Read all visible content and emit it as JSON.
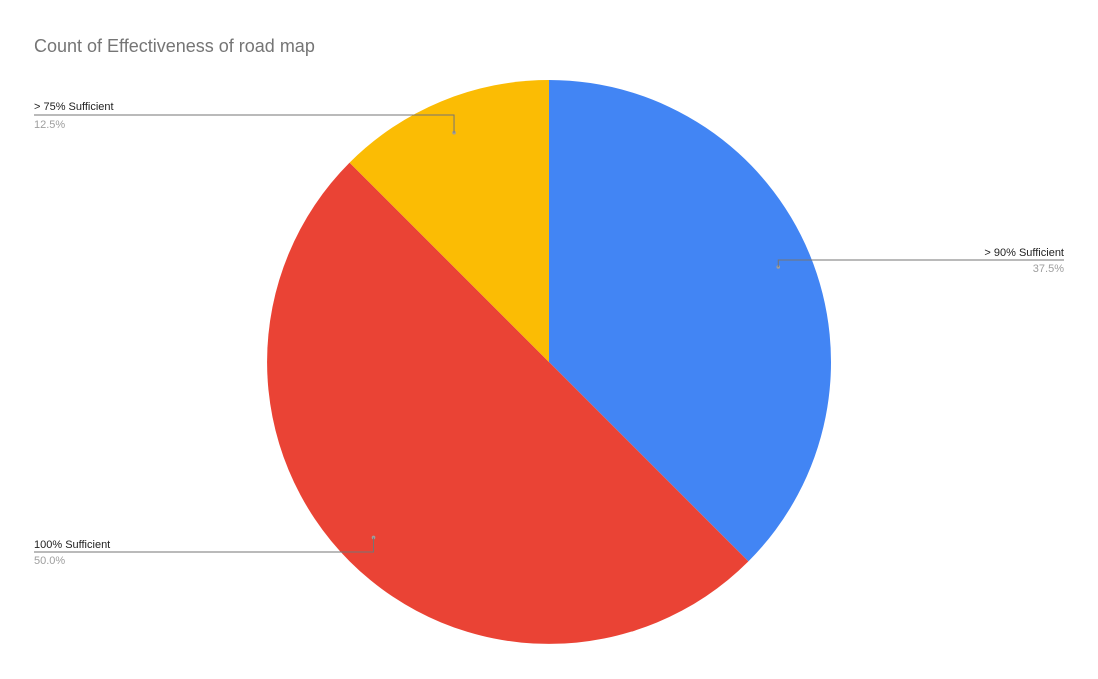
{
  "chart_data": {
    "type": "pie",
    "title": "Count of Effectiveness of road map",
    "slices": [
      {
        "label": "> 90% Sufficient",
        "value": 37.5,
        "percent_label": "37.5%",
        "color": "#4285F4"
      },
      {
        "label": "100% Sufficient",
        "value": 50.0,
        "percent_label": "50.0%",
        "color": "#EA4335"
      },
      {
        "label": "> 75% Sufficient",
        "value": 12.5,
        "percent_label": "12.5%",
        "color": "#FBBC04"
      }
    ],
    "start_angle": "top",
    "direction": "clockwise",
    "legend": "none"
  }
}
